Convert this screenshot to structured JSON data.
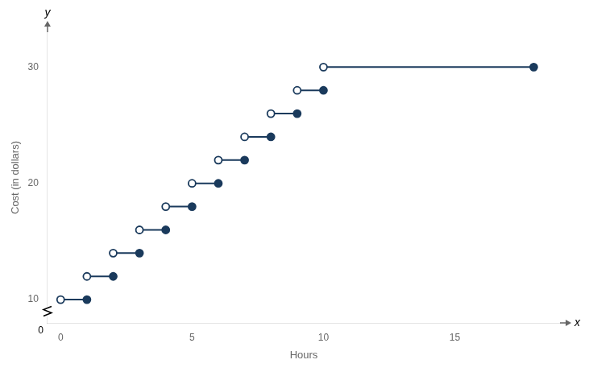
{
  "chart_data": {
    "type": "piecewise",
    "xlabel": "Hours",
    "ylabel": "Cost (in dollars)",
    "pieces": [
      {
        "x_start": 0,
        "x_end": 1,
        "y": 10
      },
      {
        "x_start": 1,
        "x_end": 2,
        "y": 12
      },
      {
        "x_start": 2,
        "x_end": 3,
        "y": 14
      },
      {
        "x_start": 3,
        "x_end": 4,
        "y": 16
      },
      {
        "x_start": 4,
        "x_end": 5,
        "y": 18
      },
      {
        "x_start": 5,
        "x_end": 6,
        "y": 20
      },
      {
        "x_start": 6,
        "x_end": 7,
        "y": 22
      },
      {
        "x_start": 7,
        "x_end": 8,
        "y": 24
      },
      {
        "x_start": 8,
        "x_end": 9,
        "y": 26
      },
      {
        "x_start": 9,
        "x_end": 10,
        "y": 28
      },
      {
        "x_start": 10,
        "x_end": 18,
        "y": 30
      }
    ],
    "color": "#1a3a5c",
    "xlim": [
      -0.5,
      19
    ],
    "ylim": [
      8,
      33
    ],
    "xticks": [
      0,
      5,
      10,
      15
    ],
    "yticks": [
      10,
      20,
      30
    ],
    "grid": false,
    "annotations": [
      {
        "text": "x",
        "position": "x_axis_end"
      },
      {
        "text": "y",
        "position": "y_axis_end"
      },
      {
        "text": "0",
        "position": "origin"
      }
    ]
  }
}
